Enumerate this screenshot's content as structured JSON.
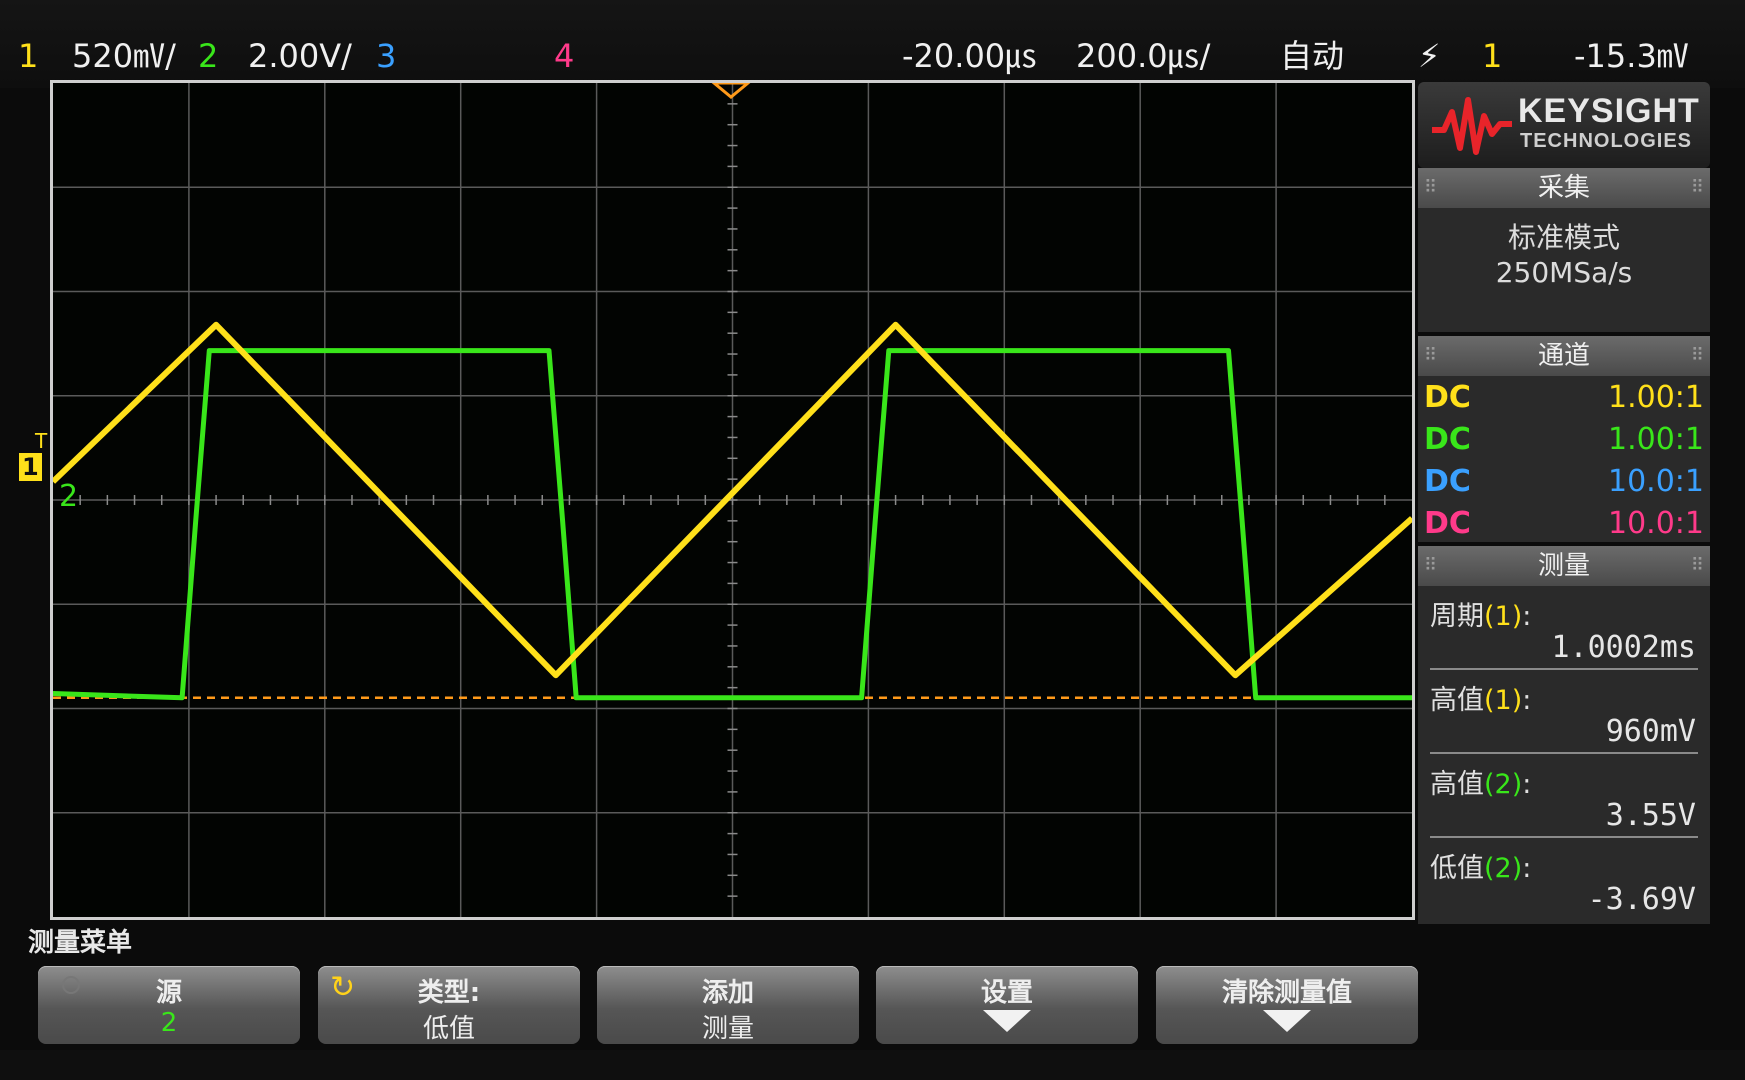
{
  "top_bar": {
    "ch1_num": "1",
    "ch1_scale": "520㎷/",
    "ch2_num": "2",
    "ch2_scale": "2.00V/",
    "ch3_num": "3",
    "ch4_num": "4",
    "time_delay": "-20.00㎲",
    "time_scale": "200.0㎲/",
    "trigger_mode": "自动",
    "trigger_slope_symbol": "⚡",
    "trigger_source": "1",
    "trigger_level": "-15.3㎷"
  },
  "brand": {
    "name": "KEYSIGHT",
    "sub": "TECHNOLOGIES"
  },
  "acquisition": {
    "title": "采集",
    "mode": "标准模式",
    "sample_rate": "250MSa/s"
  },
  "channels": {
    "title": "通道",
    "rows": [
      {
        "coupling": "DC",
        "probe": "1.00:1",
        "color": "#ffe01a"
      },
      {
        "coupling": "DC",
        "probe": "1.00:1",
        "color": "#39e61a"
      },
      {
        "coupling": "DC",
        "probe": "10.0:1",
        "color": "#3aa0ff"
      },
      {
        "coupling": "DC",
        "probe": "10.0:1",
        "color": "#ff3a8a"
      }
    ]
  },
  "measurements": {
    "title": "测量",
    "items": [
      {
        "label": "周期",
        "src": "1",
        "value": "1.0002ms"
      },
      {
        "label": "高值",
        "src": "1",
        "value": "960mV"
      },
      {
        "label": "高值",
        "src": "2",
        "value": "3.55V"
      },
      {
        "label": "低值",
        "src": "2",
        "value": "-3.69V"
      }
    ]
  },
  "markers": {
    "trigger_level_marker": "T",
    "ch1_marker": "1",
    "ch2_marker": "2"
  },
  "menu": {
    "title": "测量菜单",
    "softkeys": [
      {
        "line1": "源",
        "line2": "2"
      },
      {
        "line1": "类型:",
        "line2": "低值"
      },
      {
        "line1": "添加",
        "line2": "测量"
      },
      {
        "line1": "设置",
        "line2": ""
      },
      {
        "line1": "清除测量值",
        "line2": ""
      }
    ]
  },
  "colors": {
    "ch1": "#ffe01a",
    "ch2": "#39e61a",
    "ch3": "#3aa0ff",
    "ch4": "#ff3a8a",
    "trigger_line": "#ff9a1a"
  },
  "chart_data": {
    "type": "line",
    "xlim": [
      -1020,
      980
    ],
    "series": [
      {
        "x": [
          -1020,
          -780,
          -280,
          220,
          720,
          980
        ],
        "y": [
          0.1,
          0.95,
          -0.95,
          0.95,
          -0.95,
          -0.1
        ]
      },
      {
        "x": [
          -1020,
          -830,
          -810,
          -790,
          -290,
          -270,
          -250,
          170,
          190,
          210,
          710,
          730,
          750,
          980
        ],
        "y": [
          -3.6,
          -3.69,
          0,
          3.55,
          3.55,
          0,
          -3.69,
          -3.69,
          0,
          3.55,
          3.55,
          0,
          -3.69,
          -3.69
        ]
      }
    ]
  }
}
